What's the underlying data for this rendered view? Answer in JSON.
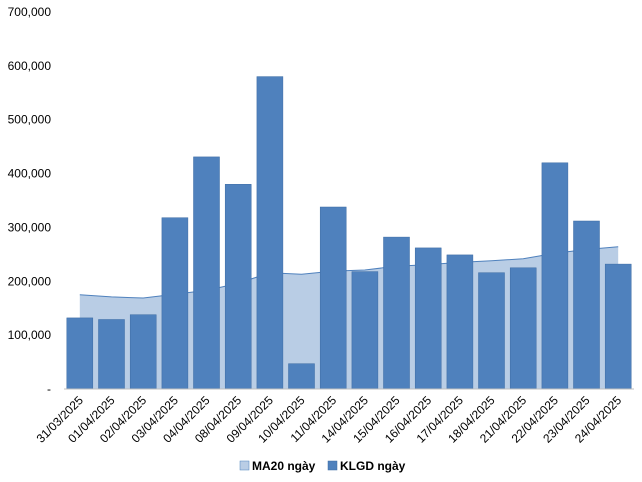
{
  "chart_data": {
    "type": "bar",
    "categories": [
      "31/03/2025",
      "01/04/2025",
      "02/04/2025",
      "03/04/2025",
      "04/04/2025",
      "08/04/2025",
      "09/04/2025",
      "10/04/2025",
      "11/04/2025",
      "14/04/2025",
      "15/04/2025",
      "16/04/2025",
      "17/04/2025",
      "18/04/2025",
      "21/04/2025",
      "22/04/2025",
      "23/04/2025",
      "24/04/2025"
    ],
    "series": [
      {
        "name": "MA20 ngày",
        "kind": "area",
        "color": "#b9cde5",
        "stroke": "#4f81bd",
        "values": [
          175000,
          171000,
          169000,
          176000,
          183000,
          196000,
          216000,
          213000,
          219000,
          221000,
          228000,
          231000,
          235000,
          238000,
          242000,
          252000,
          259000,
          264000
        ]
      },
      {
        "name": "KLGD ngày",
        "kind": "bar",
        "color": "#4f81bd",
        "stroke": "#3a6aa3",
        "values": [
          132000,
          129000,
          138000,
          318000,
          431000,
          380000,
          580000,
          47000,
          338000,
          218000,
          282000,
          262000,
          249000,
          216000,
          225000,
          420000,
          312000,
          232000
        ]
      }
    ],
    "ylim": [
      0,
      700000
    ],
    "yticks": [
      "-",
      "100,000",
      "200,000",
      "300,000",
      "400,000",
      "500,000",
      "600,000",
      "700,000"
    ],
    "grid": false,
    "legend_position": "bottom"
  }
}
